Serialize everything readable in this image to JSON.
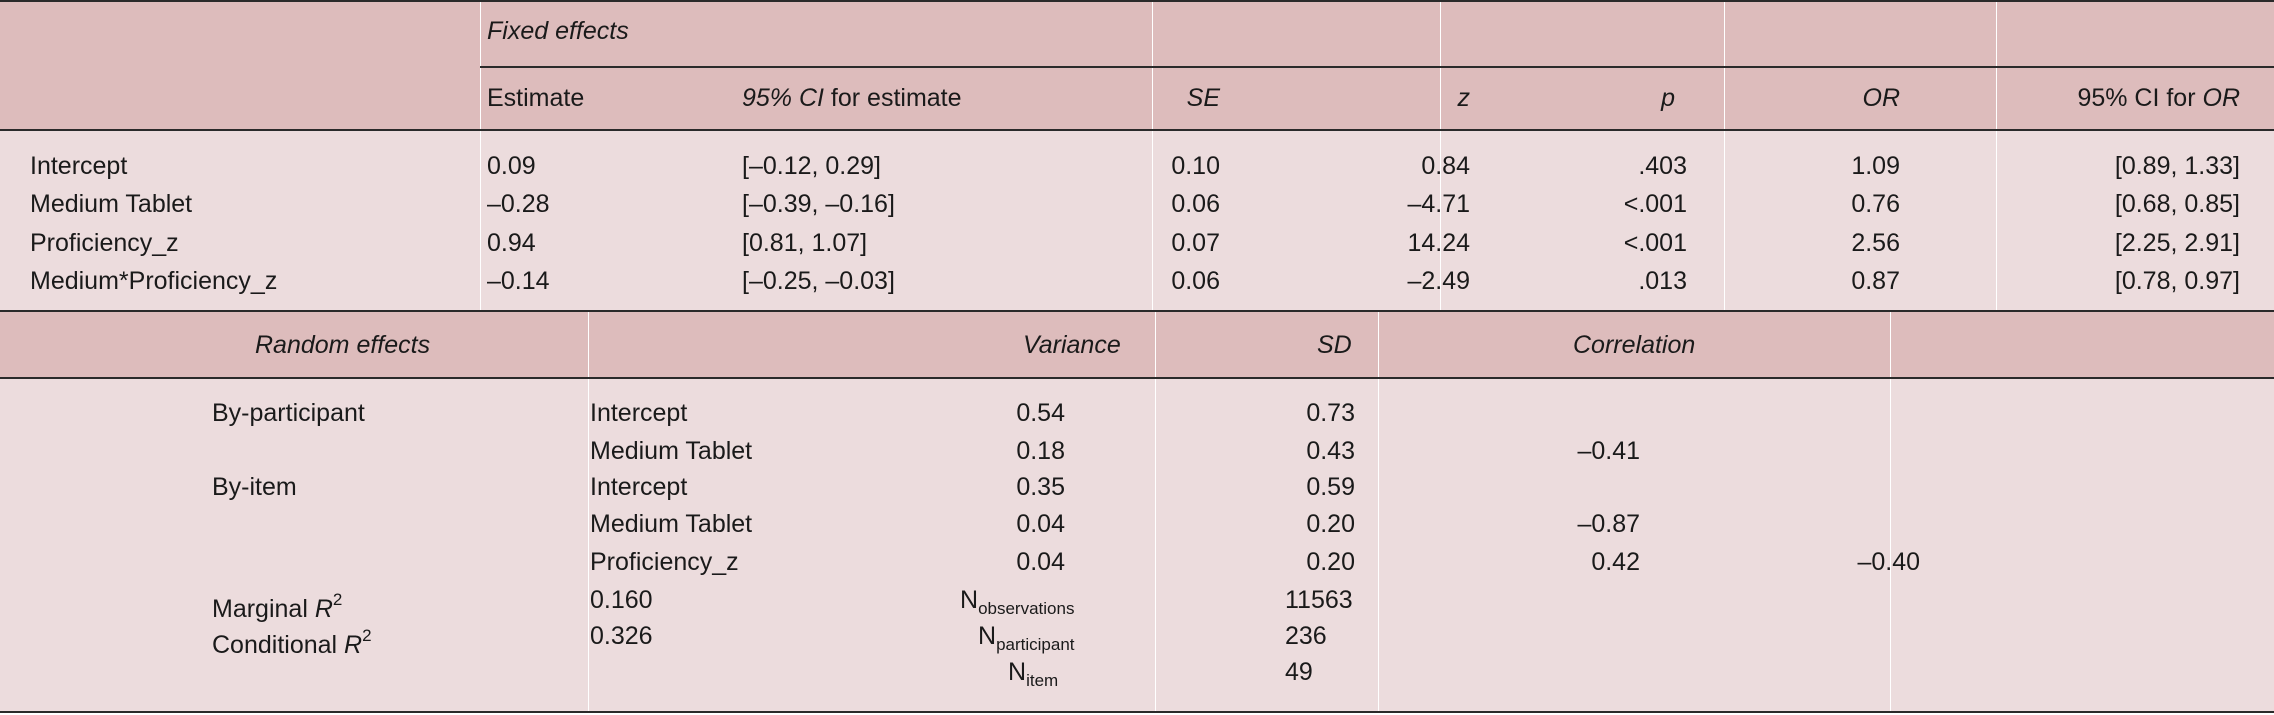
{
  "colors": {
    "header_band": "#ddbcbc",
    "body_band": "#ecdcdd",
    "rule": "#2a2a2a"
  },
  "fixed": {
    "title": "Fixed effects",
    "cols": {
      "estimate": "Estimate",
      "ci_est_italic": "95% CI",
      "ci_est_rest": " for estimate",
      "se": "SE",
      "z": "z",
      "p": "p",
      "or": "OR",
      "ci_or_plain": "95% CI for ",
      "ci_or_italic": "OR"
    },
    "rows": [
      [
        "Intercept",
        "0.09",
        "[–0.12, 0.29]",
        "0.10",
        "0.84",
        ".403",
        "1.09",
        "[0.89, 1.33]"
      ],
      [
        "Medium Tablet",
        "–0.28",
        "[–0.39, –0.16]",
        "0.06",
        "–4.71",
        "<.001",
        "0.76",
        "[0.68, 0.85]"
      ],
      [
        "Proficiency_z",
        "0.94",
        "[0.81, 1.07]",
        "0.07",
        "14.24",
        "<.001",
        "2.56",
        "[2.25, 2.91]"
      ],
      [
        "Medium*Proficiency_z",
        "–0.14",
        "[–0.25, –0.03]",
        "0.06",
        "–2.49",
        ".013",
        "0.87",
        "[0.78, 0.97]"
      ]
    ]
  },
  "random": {
    "title": "Random effects",
    "cols": {
      "variance": "Variance",
      "sd": "SD",
      "correlation": "Correlation"
    },
    "rows": [
      {
        "group": "By-participant",
        "term": "Intercept",
        "variance": "0.54",
        "sd": "0.73",
        "corr1": "",
        "corr2": ""
      },
      {
        "group": "",
        "term": "Medium Tablet",
        "variance": "0.18",
        "sd": "0.43",
        "corr1": "–0.41",
        "corr2": ""
      },
      {
        "group": "By-item",
        "term": "Intercept",
        "variance": "0.35",
        "sd": "0.59",
        "corr1": "",
        "corr2": ""
      },
      {
        "group": "",
        "term": "Medium Tablet",
        "variance": "0.04",
        "sd": "0.20",
        "corr1": "–0.87",
        "corr2": ""
      },
      {
        "group": "",
        "term": "Proficiency_z",
        "variance": "0.04",
        "sd": "0.20",
        "corr1": "0.42",
        "corr2": "–0.40"
      }
    ],
    "stats": {
      "marginal_label": "Marginal ",
      "conditional_label": "Conditional ",
      "r": "R",
      "sq": "2",
      "marginal_value": "0.160",
      "conditional_value": "0.326",
      "n": "N",
      "n_obs_sub": "observations",
      "n_obs_value": "11563",
      "n_part_sub": "participant",
      "n_part_value": "236",
      "n_item_sub": "item",
      "n_item_value": "49"
    }
  }
}
